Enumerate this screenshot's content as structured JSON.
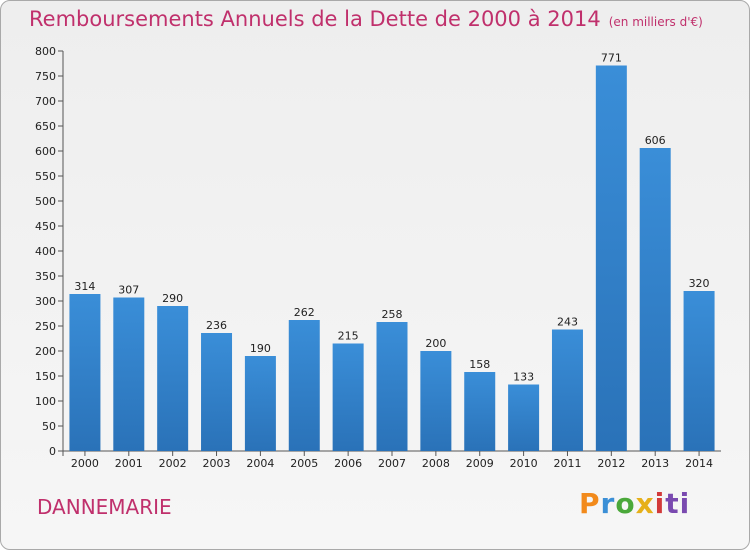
{
  "chart_data": {
    "type": "bar",
    "title": "Remboursements Annuels de la Dette de 2000 à 2014",
    "unit_label": "(en milliers d'€)",
    "categories": [
      "2000",
      "2001",
      "2002",
      "2003",
      "2004",
      "2005",
      "2006",
      "2007",
      "2008",
      "2009",
      "2010",
      "2011",
      "2012",
      "2013",
      "2014"
    ],
    "values": [
      314,
      307,
      290,
      236,
      190,
      262,
      215,
      258,
      200,
      158,
      133,
      243,
      771,
      606,
      320
    ],
    "ylim": [
      0,
      800
    ],
    "yticks": [
      0,
      50,
      100,
      150,
      200,
      250,
      300,
      350,
      400,
      450,
      500,
      550,
      600,
      650,
      700,
      750,
      800
    ],
    "xlabel": "",
    "ylabel": "",
    "grid": false,
    "bar_color": "#3a8ed8",
    "bar_color_dark": "#2a72b8"
  },
  "commune": "DANNEMARIE",
  "logo_letters": [
    "P",
    "r",
    "o",
    "x",
    "i",
    "ti"
  ],
  "colors": {
    "accent": "#c0306c"
  }
}
